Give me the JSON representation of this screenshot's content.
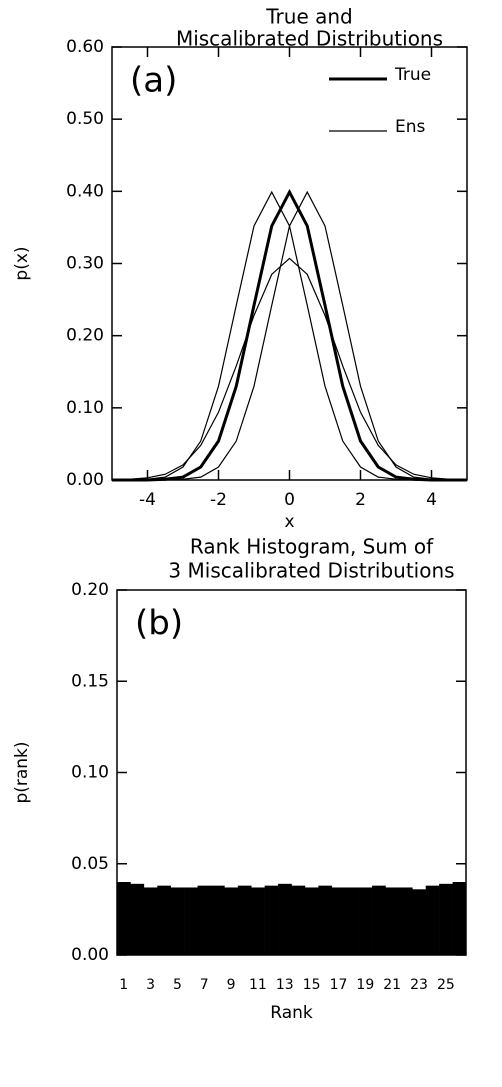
{
  "chart_data": [
    {
      "type": "line",
      "title": [
        "True and",
        "Miscalibrated Distributions"
      ],
      "panel_label": "(a)",
      "x_label": "x",
      "y_label": "p(x)",
      "x": [
        -5,
        -4.5,
        -4,
        -3.5,
        -3,
        -2.5,
        -2,
        -1.5,
        -1,
        -0.5,
        0,
        0.5,
        1,
        1.5,
        2,
        2.5,
        3,
        3.5,
        4,
        4.5,
        5
      ],
      "series": [
        {
          "name": "True",
          "color": "#000000",
          "width": 3,
          "values": [
            0,
            0,
            0,
            0.001,
            0.004,
            0.018,
            0.054,
            0.13,
            0.242,
            0.352,
            0.399,
            0.352,
            0.242,
            0.13,
            0.054,
            0.018,
            0.004,
            0.001,
            0,
            0,
            0
          ]
        },
        {
          "name": "Ens",
          "color": "#000000",
          "width": 1.2,
          "values": [
            0,
            0,
            0.001,
            0.004,
            0.018,
            0.054,
            0.13,
            0.242,
            0.352,
            0.399,
            0.352,
            0.242,
            0.13,
            0.054,
            0.018,
            0.004,
            0.001,
            0,
            0,
            0,
            0
          ]
        },
        {
          "color": "#000000",
          "width": 1.2,
          "values": [
            0,
            0,
            0,
            0,
            0.001,
            0.004,
            0.018,
            0.054,
            0.13,
            0.242,
            0.352,
            0.399,
            0.352,
            0.242,
            0.13,
            0.054,
            0.018,
            0.004,
            0.001,
            0,
            0
          ]
        },
        {
          "color": "#000000",
          "width": 1.2,
          "values": [
            0,
            0.001,
            0.003,
            0.008,
            0.021,
            0.048,
            0.094,
            0.158,
            0.228,
            0.285,
            0.307,
            0.285,
            0.228,
            0.158,
            0.094,
            0.048,
            0.021,
            0.008,
            0.003,
            0.001,
            0
          ]
        }
      ],
      "xlim": [
        -5,
        5
      ],
      "ylim": [
        0,
        0.6
      ],
      "xticks": [
        -4,
        -2,
        0,
        2,
        4
      ],
      "yticks": [
        {
          "value": 0,
          "label": "0.00"
        },
        {
          "value": 0.1,
          "label": "0.10"
        },
        {
          "value": 0.2,
          "label": "0.20"
        },
        {
          "value": 0.3,
          "label": "0.30"
        },
        {
          "value": 0.4,
          "label": "0.40"
        },
        {
          "value": 0.5,
          "label": "0.50"
        },
        {
          "value": 0.6,
          "label": "0.60"
        }
      ],
      "legend": "top-right"
    },
    {
      "type": "bar",
      "title": [
        "Rank Histogram, Sum of",
        "3 Miscalibrated Distributions"
      ],
      "panel_label": "(b)",
      "x_label": "Rank",
      "y_label": "p(rank)",
      "categories": [
        1,
        null,
        3,
        null,
        5,
        null,
        7,
        null,
        9,
        null,
        11,
        null,
        13,
        null,
        15,
        null,
        17,
        null,
        19,
        null,
        21,
        null,
        23,
        null,
        25,
        null
      ],
      "values": [
        0.04,
        0.039,
        0.037,
        0.038,
        0.037,
        0.037,
        0.038,
        0.038,
        0.037,
        0.038,
        0.037,
        0.038,
        0.039,
        0.038,
        0.037,
        0.038,
        0.037,
        0.037,
        0.037,
        0.038,
        0.037,
        0.037,
        0.036,
        0.038,
        0.039,
        0.04
      ],
      "color": "#000000",
      "ylim": [
        0,
        0.2
      ],
      "yticks": [
        {
          "value": 0,
          "label": "0.00"
        },
        {
          "value": 0.05,
          "label": "0.05"
        },
        {
          "value": 0.1,
          "label": "0.10"
        },
        {
          "value": 0.15,
          "label": "0.15"
        },
        {
          "value": 0.2,
          "label": "0.20"
        }
      ]
    }
  ]
}
